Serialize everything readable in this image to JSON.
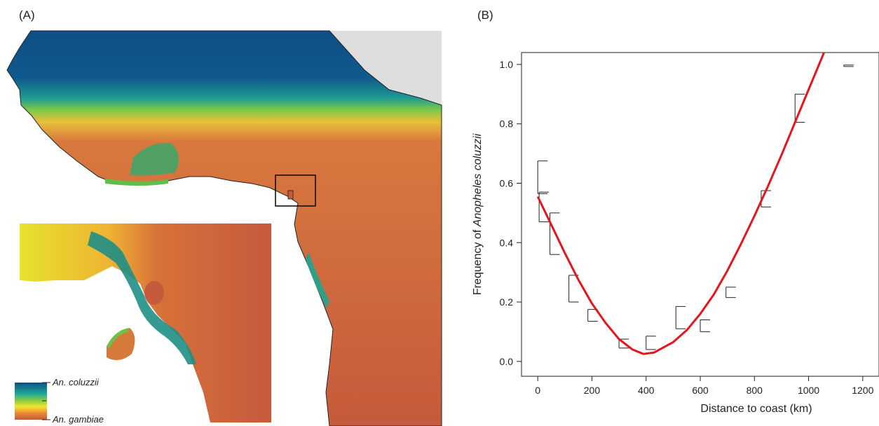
{
  "panels": {
    "a_label": "(A)",
    "b_label": "(B)"
  },
  "map": {
    "legend": {
      "top_label": "An. coluzzii",
      "bottom_label": "An. gambiae"
    },
    "colors": {
      "coluzzii": "#0f4e86",
      "transition": "#1fa89a",
      "mid": "#f2e62c",
      "gambiae": "#c65a3c",
      "land_outside": "#dedede",
      "sea": "#ffffff"
    }
  },
  "chart_data": {
    "type": "scatter",
    "xlabel": "Distance to coast (km)",
    "ylabel_prefix": "Frequency of ",
    "ylabel_italic": "Anopheles coluzzii",
    "xlim": [
      -60,
      1260
    ],
    "ylim": [
      -0.05,
      1.04
    ],
    "x_ticks": [
      0,
      200,
      400,
      600,
      800,
      1000,
      1200
    ],
    "y_ticks": [
      0.0,
      0.2,
      0.4,
      0.6,
      0.8,
      1.0
    ],
    "grid": false,
    "line_color": "#e8141b",
    "points": [
      {
        "x": 0,
        "low": 0.565,
        "high": 0.675
      },
      {
        "x": 5,
        "low": 0.47,
        "high": 0.57
      },
      {
        "x": 45,
        "low": 0.36,
        "high": 0.5
      },
      {
        "x": 115,
        "low": 0.2,
        "high": 0.29
      },
      {
        "x": 185,
        "low": 0.135,
        "high": 0.175
      },
      {
        "x": 300,
        "low": 0.045,
        "high": 0.075
      },
      {
        "x": 400,
        "low": 0.04,
        "high": 0.085
      },
      {
        "x": 510,
        "low": 0.11,
        "high": 0.185
      },
      {
        "x": 600,
        "low": 0.1,
        "high": 0.14
      },
      {
        "x": 695,
        "low": 0.215,
        "high": 0.25
      },
      {
        "x": 825,
        "low": 0.52,
        "high": 0.575
      },
      {
        "x": 950,
        "low": 0.805,
        "high": 0.9
      },
      {
        "x": 1130,
        "low": 0.993,
        "high": 0.998
      }
    ],
    "fit_curve": [
      {
        "x": 0,
        "y": 0.555
      },
      {
        "x": 50,
        "y": 0.46
      },
      {
        "x": 100,
        "y": 0.365
      },
      {
        "x": 150,
        "y": 0.275
      },
      {
        "x": 200,
        "y": 0.195
      },
      {
        "x": 250,
        "y": 0.13
      },
      {
        "x": 300,
        "y": 0.075
      },
      {
        "x": 350,
        "y": 0.04
      },
      {
        "x": 390,
        "y": 0.025
      },
      {
        "x": 430,
        "y": 0.03
      },
      {
        "x": 500,
        "y": 0.065
      },
      {
        "x": 550,
        "y": 0.105
      },
      {
        "x": 600,
        "y": 0.16
      },
      {
        "x": 650,
        "y": 0.225
      },
      {
        "x": 700,
        "y": 0.305
      },
      {
        "x": 750,
        "y": 0.395
      },
      {
        "x": 800,
        "y": 0.49
      },
      {
        "x": 850,
        "y": 0.59
      },
      {
        "x": 900,
        "y": 0.695
      },
      {
        "x": 950,
        "y": 0.805
      },
      {
        "x": 1000,
        "y": 0.915
      },
      {
        "x": 1050,
        "y": 1.025
      },
      {
        "x": 1090,
        "y": 1.115
      }
    ]
  }
}
